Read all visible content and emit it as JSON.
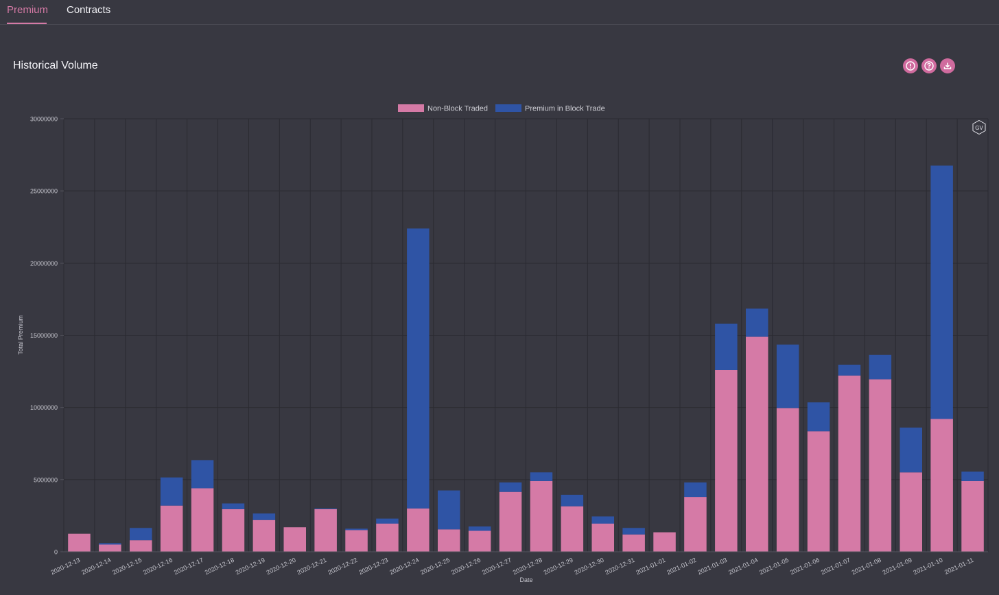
{
  "tabs": [
    {
      "label": "Premium",
      "active": true
    },
    {
      "label": "Contracts",
      "active": false
    }
  ],
  "header": {
    "title": "Historical Volume",
    "icons": [
      "info-icon",
      "help-icon",
      "download-icon"
    ]
  },
  "watermark": "GV",
  "colors": {
    "background": "#383841",
    "non_block": "#d57aa6",
    "block": "#2f54a5",
    "accent": "#d06b9e"
  },
  "chart_data": {
    "type": "bar",
    "stacked": true,
    "xlabel": "Date",
    "ylabel": "Total Premium",
    "ylim": [
      0,
      30000000
    ],
    "yticks": [
      0,
      5000000,
      10000000,
      15000000,
      20000000,
      25000000,
      30000000
    ],
    "legend_position": "top-center",
    "grid": true,
    "categories": [
      "2020-12-13",
      "2020-12-14",
      "2020-12-15",
      "2020-12-16",
      "2020-12-17",
      "2020-12-18",
      "2020-12-19",
      "2020-12-20",
      "2020-12-21",
      "2020-12-22",
      "2020-12-23",
      "2020-12-24",
      "2020-12-25",
      "2020-12-26",
      "2020-12-27",
      "2020-12-28",
      "2020-12-29",
      "2020-12-30",
      "2020-12-31",
      "2021-01-01",
      "2021-01-02",
      "2021-01-03",
      "2021-01-04",
      "2021-01-05",
      "2021-01-06",
      "2021-01-07",
      "2021-01-08",
      "2021-01-09",
      "2021-01-10",
      "2021-01-11"
    ],
    "series": [
      {
        "name": "Non-Block Traded",
        "color": "#d57aa6",
        "values": [
          1250000,
          500000,
          800000,
          3200000,
          4400000,
          2950000,
          2200000,
          1700000,
          2950000,
          1500000,
          1950000,
          3000000,
          1550000,
          1450000,
          4150000,
          4900000,
          3150000,
          1950000,
          1200000,
          1350000,
          3800000,
          12600000,
          14900000,
          9950000,
          8350000,
          12200000,
          11950000,
          5500000,
          9200000,
          4900000
        ]
      },
      {
        "name": "Premium in Block Trade",
        "color": "#2f54a5",
        "values": [
          0,
          100000,
          850000,
          1950000,
          1950000,
          400000,
          450000,
          0,
          50000,
          100000,
          350000,
          19400000,
          2700000,
          300000,
          650000,
          600000,
          800000,
          500000,
          450000,
          0,
          1000000,
          3200000,
          1950000,
          4400000,
          2000000,
          750000,
          1700000,
          3100000,
          17550000,
          650000
        ]
      }
    ]
  }
}
